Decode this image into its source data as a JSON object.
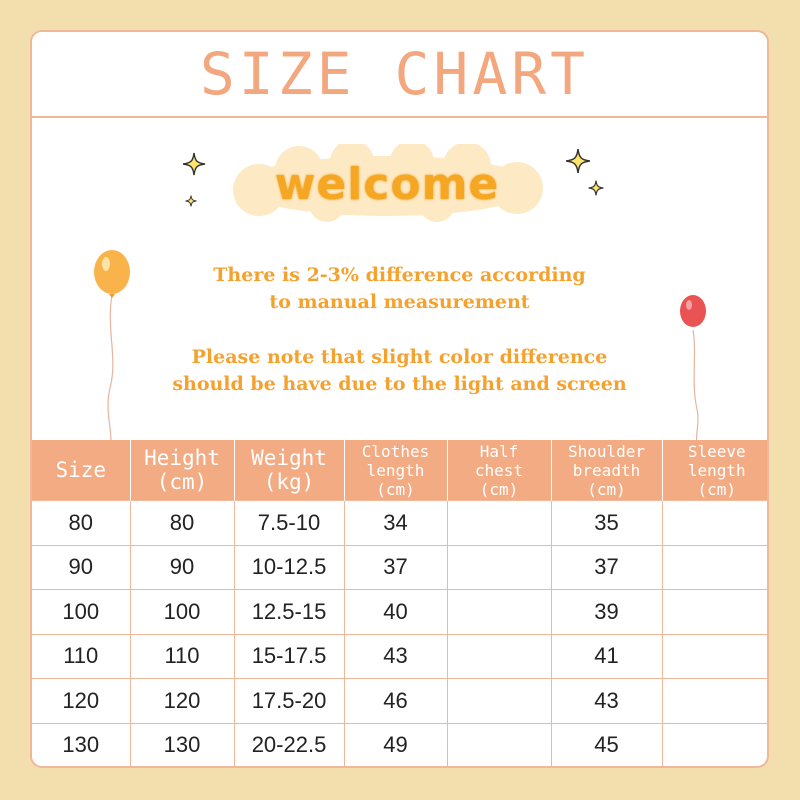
{
  "title": "SIZE CHART",
  "welcome": "welcome",
  "notes": {
    "line1": "There is 2-3% difference according",
    "line2": "to manual measurement",
    "line3": "Please note that slight color difference",
    "line4": "should be have due to the light and screen"
  },
  "colors": {
    "background": "#f3dfae",
    "accent": "#f3ab83",
    "welcome_text": "#f5a623",
    "note_text": "#f5a12e"
  },
  "table": {
    "headers": [
      {
        "l1": "Size",
        "l2": ""
      },
      {
        "l1": "Height",
        "l2": "(cm)"
      },
      {
        "l1": "Weight",
        "l2": "(kg)"
      },
      {
        "l1": "Clothes",
        "l2": "length",
        "l3": "(cm)"
      },
      {
        "l1": "Half",
        "l2": "chest",
        "l3": "(cm)"
      },
      {
        "l1": "Shoulder",
        "l2": "breadth",
        "l3": "(cm)"
      },
      {
        "l1": "Sleeve",
        "l2": "length",
        "l3": "(cm)"
      }
    ],
    "rows": [
      [
        "80",
        "80",
        "7.5-10",
        "34",
        "",
        "35",
        ""
      ],
      [
        "90",
        "90",
        "10-12.5",
        "37",
        "",
        "37",
        ""
      ],
      [
        "100",
        "100",
        "12.5-15",
        "40",
        "",
        "39",
        ""
      ],
      [
        "110",
        "110",
        "15-17.5",
        "43",
        "",
        "41",
        ""
      ],
      [
        "120",
        "120",
        "17.5-20",
        "46",
        "",
        "43",
        ""
      ],
      [
        "130",
        "130",
        "20-22.5",
        "49",
        "",
        "45",
        ""
      ]
    ]
  }
}
